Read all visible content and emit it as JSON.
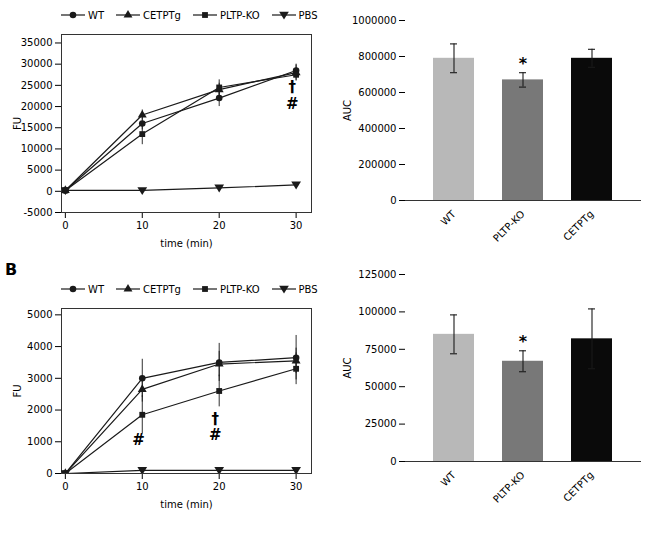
{
  "chart_data": [
    {
      "type": "line",
      "xlabel": "time (min)",
      "ylabel": "FU",
      "x": [
        0,
        10,
        20,
        30
      ],
      "series": [
        {
          "name": "WT",
          "color": "#1a1a1a",
          "marker": "circle",
          "values": [
            200,
            16000,
            22000,
            28500
          ],
          "errors": [
            300,
            1500,
            2000,
            1500
          ]
        },
        {
          "name": "CETPTg",
          "color": "#1a1a1a",
          "marker": "triangle-up",
          "values": [
            200,
            18000,
            24000,
            28000
          ],
          "errors": [
            300,
            1200,
            1500,
            1800
          ]
        },
        {
          "name": "PLTP-KO",
          "color": "#1a1a1a",
          "marker": "square",
          "values": [
            200,
            13500,
            24500,
            27500
          ],
          "errors": [
            300,
            2500,
            1800,
            1500
          ]
        },
        {
          "name": "PBS",
          "color": "#1a1a1a",
          "marker": "triangle-down",
          "values": [
            200,
            200,
            800,
            1500
          ],
          "errors": [
            100,
            200,
            500,
            500
          ]
        }
      ],
      "xlim": [
        -0.5,
        32
      ],
      "xticks": [
        0,
        10,
        20,
        30
      ],
      "ylim": [
        -5000,
        37000
      ],
      "yticks": [
        -5000,
        0,
        5000,
        10000,
        15000,
        20000,
        25000,
        30000,
        35000
      ],
      "legend": "upper left",
      "grid": false,
      "annotations": [
        {
          "x": 29.5,
          "y": 24500,
          "text": "†"
        },
        {
          "x": 29.5,
          "y": 20500,
          "text": "#"
        }
      ]
    },
    {
      "type": "bar",
      "ylabel": "AUC",
      "categories": [
        "WT",
        "PLTP-KO",
        "CETPTg"
      ],
      "values": [
        790000,
        670000,
        790000
      ],
      "errors": [
        80000,
        40000,
        50000
      ],
      "colors": [
        "#b8b8b8",
        "#787878",
        "#0a0a0a"
      ],
      "error_color": "#1a1a1a",
      "ylim": [
        0,
        1000000
      ],
      "yticks": [
        0,
        200000,
        400000,
        600000,
        800000,
        1000000
      ],
      "grid": false,
      "annotations": [
        {
          "x": "PLTP-KO",
          "y": 731300,
          "text": "*"
        }
      ]
    },
    {
      "type": "line",
      "title": "B",
      "xlabel": "time (min)",
      "ylabel": "FU",
      "x": [
        0,
        10,
        20,
        30
      ],
      "series": [
        {
          "name": "WT",
          "color": "#1a1a1a",
          "marker": "circle",
          "values": [
            0,
            3000,
            3500,
            3650
          ],
          "errors": [
            0,
            600,
            600,
            700
          ]
        },
        {
          "name": "CETPTg",
          "color": "#1a1a1a",
          "marker": "triangle-up",
          "values": [
            0,
            2650,
            3450,
            3550
          ],
          "errors": [
            0,
            400,
            400,
            400
          ]
        },
        {
          "name": "PLTP-KO",
          "color": "#1a1a1a",
          "marker": "square",
          "values": [
            0,
            1850,
            2600,
            3300
          ],
          "errors": [
            0,
            600,
            500,
            500
          ]
        },
        {
          "name": "PBS",
          "color": "#1a1a1a",
          "marker": "triangle-down",
          "values": [
            0,
            100,
            100,
            100
          ],
          "errors": [
            0,
            50,
            50,
            50
          ]
        }
      ],
      "xlim": [
        -0.5,
        32
      ],
      "xticks": [
        0,
        10,
        20,
        30
      ],
      "ylim": [
        0,
        5200
      ],
      "yticks": [
        0,
        1000,
        2000,
        3000,
        4000,
        5000
      ],
      "legend": "upper left",
      "grid": false,
      "annotations": [
        {
          "x": 9.5,
          "y": 1050,
          "text": "#"
        },
        {
          "x": 19.5,
          "y": 1700,
          "text": "†"
        },
        {
          "x": 19.5,
          "y": 1200,
          "text": "#"
        }
      ]
    },
    {
      "type": "bar",
      "ylabel": "AUC",
      "categories": [
        "WT",
        "PLTP-KO",
        "CETPTg"
      ],
      "values": [
        85000,
        67000,
        82000
      ],
      "errors": [
        13000,
        7000,
        20000
      ],
      "colors": [
        "#b8b8b8",
        "#787878",
        "#0a0a0a"
      ],
      "error_color": "#1a1a1a",
      "ylim": [
        0,
        125000
      ],
      "yticks": [
        0,
        25000,
        50000,
        75000,
        100000,
        125000
      ],
      "grid": false,
      "annotations": [
        {
          "x": "PLTP-KO",
          "y": 76220,
          "text": "*"
        }
      ]
    }
  ]
}
